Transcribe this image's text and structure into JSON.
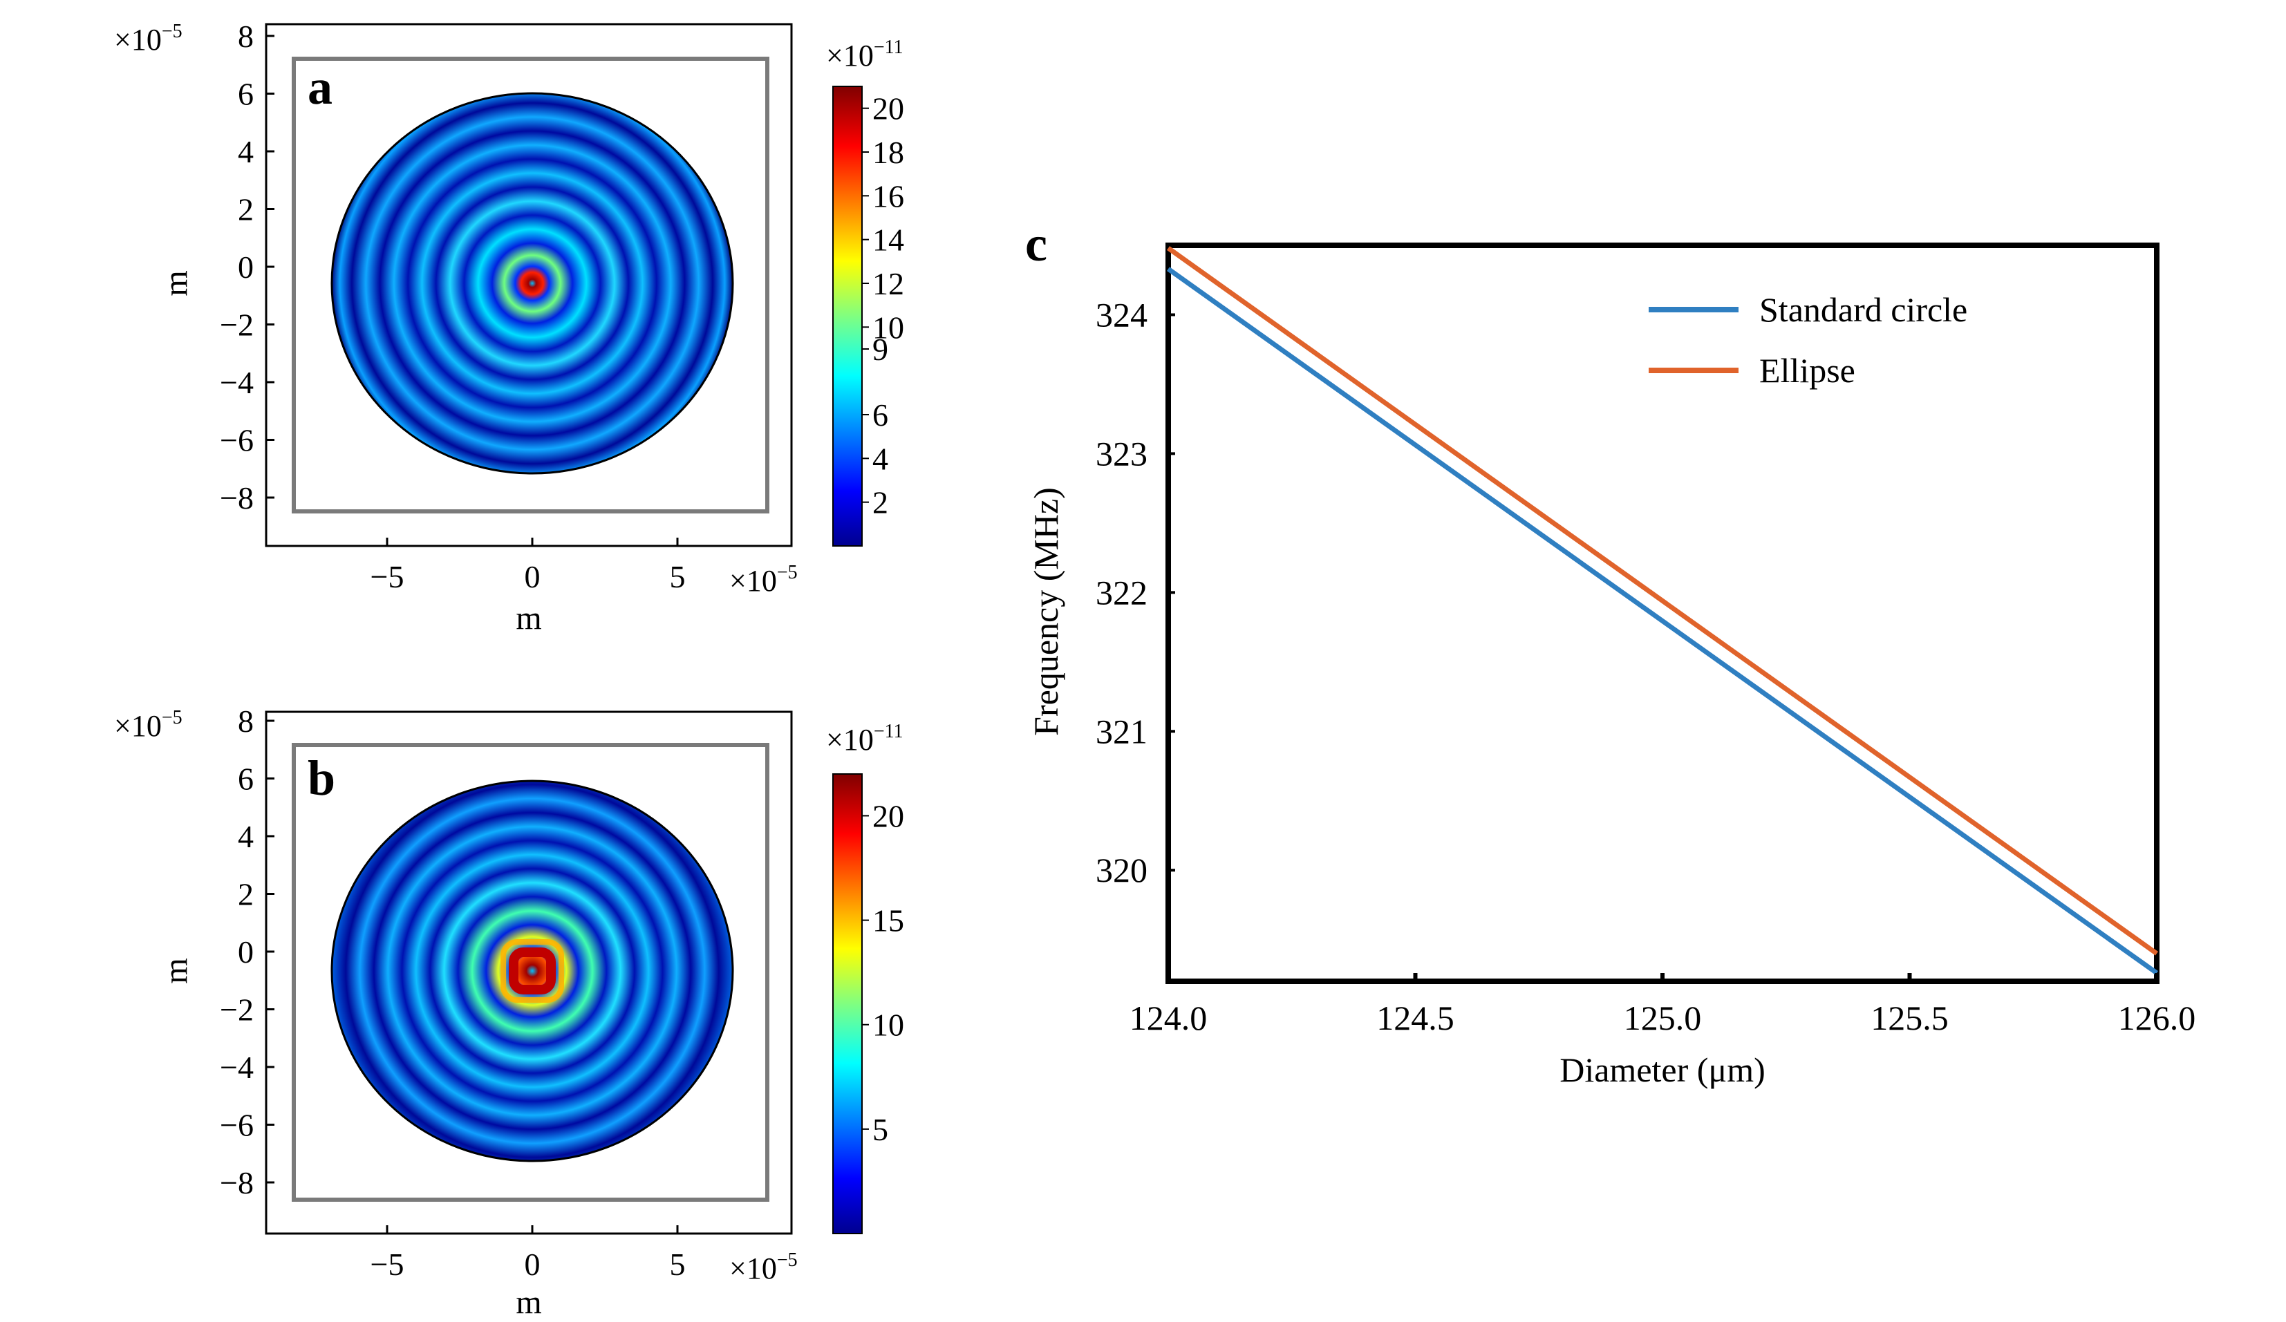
{
  "panels": {
    "a": {
      "label": "a",
      "x_multiplier": "×10",
      "x_multiplier_exp": "−5",
      "y_multiplier": "×10",
      "y_multiplier_exp": "−5",
      "xlabel": "m",
      "ylabel": "m",
      "x_ticks": [
        "−5",
        "0",
        "5"
      ],
      "y_ticks": [
        "8",
        "6",
        "4",
        "2",
        "0",
        "−2",
        "−4",
        "−6",
        "−8"
      ],
      "colorbar_multiplier": "×10",
      "colorbar_multiplier_exp": "−11",
      "colorbar_ticks": [
        "20",
        "18",
        "16",
        "14",
        "12",
        "10",
        "9",
        "6",
        "4",
        "2"
      ]
    },
    "b": {
      "label": "b",
      "x_multiplier": "×10",
      "x_multiplier_exp": "−5",
      "y_multiplier": "×10",
      "y_multiplier_exp": "−5",
      "xlabel": "m",
      "ylabel": "m",
      "x_ticks": [
        "−5",
        "0",
        "5"
      ],
      "y_ticks": [
        "8",
        "6",
        "4",
        "2",
        "0",
        "−2",
        "−4",
        "−6",
        "−8"
      ],
      "colorbar_multiplier": "×10",
      "colorbar_multiplier_exp": "−11",
      "colorbar_ticks": [
        "20",
        "15",
        "10",
        "5"
      ]
    },
    "c": {
      "label": "c",
      "xlabel": "Diameter (μm)",
      "ylabel": "Frequency (MHz)",
      "x_ticks": [
        "124.0",
        "124.5",
        "125.0",
        "125.5",
        "126.0"
      ],
      "y_ticks": [
        "324",
        "323",
        "322",
        "321",
        "320"
      ]
    }
  },
  "chart_data": [
    {
      "type": "heatmap",
      "panel": "a",
      "x_range": [
        -8,
        8
      ],
      "y_range": [
        -8,
        8
      ],
      "units_scale": "1e-5 m",
      "disk_radius": 6.2,
      "colorbar_range": [
        0,
        21
      ],
      "colorbar_scale": "1e-11",
      "colormap": "jet",
      "pattern": "concentric circular rings, peak at center",
      "ring_count": 7
    },
    {
      "type": "heatmap",
      "panel": "b",
      "x_range": [
        -8,
        8
      ],
      "y_range": [
        -8,
        8
      ],
      "units_scale": "1e-5 m",
      "disk_radius": 6.2,
      "colorbar_range": [
        0,
        22
      ],
      "colorbar_scale": "1e-11",
      "colormap": "jet",
      "pattern": "concentric rings with square-shaped central peak",
      "ring_count": 7
    },
    {
      "type": "line",
      "panel": "c",
      "xlim": [
        124.0,
        126.0
      ],
      "ylim": [
        319.2,
        324.5
      ],
      "xlabel": "Diameter (μm)",
      "ylabel": "Frequency (MHz)",
      "legend_position": "top-right",
      "series": [
        {
          "name": "Standard circle",
          "color": "#2f7fc1",
          "x": [
            124.0,
            126.0
          ],
          "y": [
            324.33,
            319.26
          ]
        },
        {
          "name": "Ellipse",
          "color": "#e0632b",
          "x": [
            124.0,
            126.0
          ],
          "y": [
            324.48,
            319.4
          ]
        }
      ]
    }
  ],
  "colors": {
    "circle_line": "#2f7fc1",
    "ellipse_line": "#e0632b",
    "inner_box": "#7a7a7a"
  }
}
